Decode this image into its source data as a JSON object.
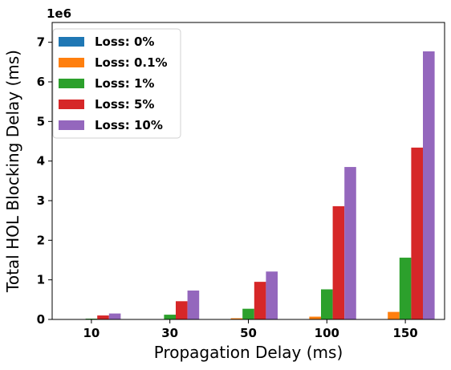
{
  "chart_data": {
    "type": "bar",
    "xlabel": "Propagation Delay (ms)",
    "ylabel": "Total HOL Blocking Delay (ms)",
    "y_scale_label": "1e6",
    "categories": [
      "10",
      "30",
      "50",
      "100",
      "150"
    ],
    "ylim": [
      0,
      7.5
    ],
    "yticks": [
      "0",
      "1",
      "2",
      "3",
      "4",
      "5",
      "6",
      "7"
    ],
    "legend_position": "top-left",
    "series": [
      {
        "name": "Loss: 0%",
        "color": "#1f77b4",
        "values": [
          0,
          0,
          0,
          0,
          0
        ]
      },
      {
        "name": "Loss: 0.1%",
        "color": "#ff7f0e",
        "values": [
          0.002,
          0.01,
          0.03,
          0.07,
          0.19
        ]
      },
      {
        "name": "Loss: 1%",
        "color": "#2ca02c",
        "values": [
          0.02,
          0.12,
          0.27,
          0.76,
          1.56
        ]
      },
      {
        "name": "Loss: 5%",
        "color": "#d62728",
        "values": [
          0.1,
          0.46,
          0.95,
          2.86,
          4.34
        ]
      },
      {
        "name": "Loss: 10%",
        "color": "#9467bd",
        "values": [
          0.15,
          0.73,
          1.21,
          3.85,
          6.77
        ]
      }
    ]
  }
}
